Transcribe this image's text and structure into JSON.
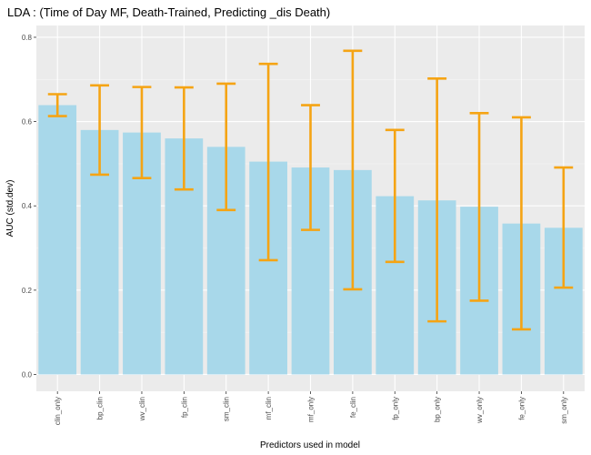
{
  "chart_data": {
    "type": "bar",
    "title": "LDA : (Time of Day MF, Death-Trained, Predicting _dis Death)",
    "xlabel": "Predictors used in model",
    "ylabel": "AUC (std.dev)",
    "ylim": [
      0,
      0.8
    ],
    "yticks": [
      "0.0",
      "0.2",
      "0.4",
      "0.6",
      "0.8"
    ],
    "categories": [
      "clin_only",
      "bp_clin",
      "wv_clin",
      "fp_clin",
      "sm_clin",
      "mf_clin",
      "mf_only",
      "fe_clin",
      "fp_only",
      "bp_only",
      "wv_only",
      "fe_only",
      "sm_only"
    ],
    "values": [
      0.639,
      0.58,
      0.574,
      0.56,
      0.54,
      0.505,
      0.491,
      0.485,
      0.423,
      0.413,
      0.398,
      0.358,
      0.348
    ],
    "error_low": [
      0.613,
      0.474,
      0.466,
      0.439,
      0.39,
      0.271,
      0.343,
      0.202,
      0.267,
      0.126,
      0.175,
      0.107,
      0.206
    ],
    "error_high": [
      0.665,
      0.686,
      0.682,
      0.681,
      0.69,
      0.737,
      0.639,
      0.768,
      0.58,
      0.702,
      0.62,
      0.61,
      0.491
    ],
    "grid": true,
    "legend": "none",
    "colors": {
      "bar": "#a8d8ea",
      "error_bar": "#f5a414",
      "panel": "#ebebeb",
      "grid_major": "#ffffff",
      "grid_minor": "#f5f5f5"
    }
  }
}
